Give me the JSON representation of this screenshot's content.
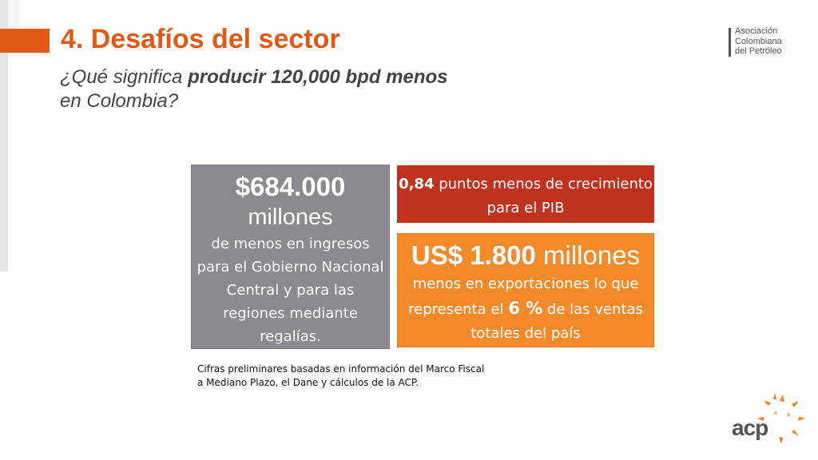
{
  "slide": {
    "title": "4. Desafíos del sector",
    "subtitle_prefix": "¿Qué significa ",
    "subtitle_bold": "producir 120,000 bpd menos",
    "subtitle_suffix": "en Colombia?"
  },
  "logo": {
    "line1": "Asociación",
    "line2": "Colombiana",
    "line3": "del Petróleo"
  },
  "box_gray": {
    "amount": "$684.000",
    "unit": "millones",
    "description": "de menos en ingresos para el Gobierno Nacional Central y para las regiones mediante regalías."
  },
  "box_red": {
    "value": "0,84",
    "text": " puntos menos de crecimiento para el PIB"
  },
  "box_orange": {
    "amount": "US$ 1.800",
    "unit": " millones",
    "desc_before": "menos en exportaciones lo que representa el ",
    "percent": "6 %",
    "desc_after": " de las ventas totales del país"
  },
  "footnote": {
    "line1": "Cifras preliminares basadas en información del Marco Fiscal",
    "line2": "a Mediano Plazo, el Dane y cálculos de la ACP."
  },
  "footer_logo": {
    "text": "acp"
  },
  "colors": {
    "accent": "#e05a14",
    "gray_box": "#8a8a8f",
    "red_box": "#c0321e",
    "orange_box": "#f48a2a"
  }
}
